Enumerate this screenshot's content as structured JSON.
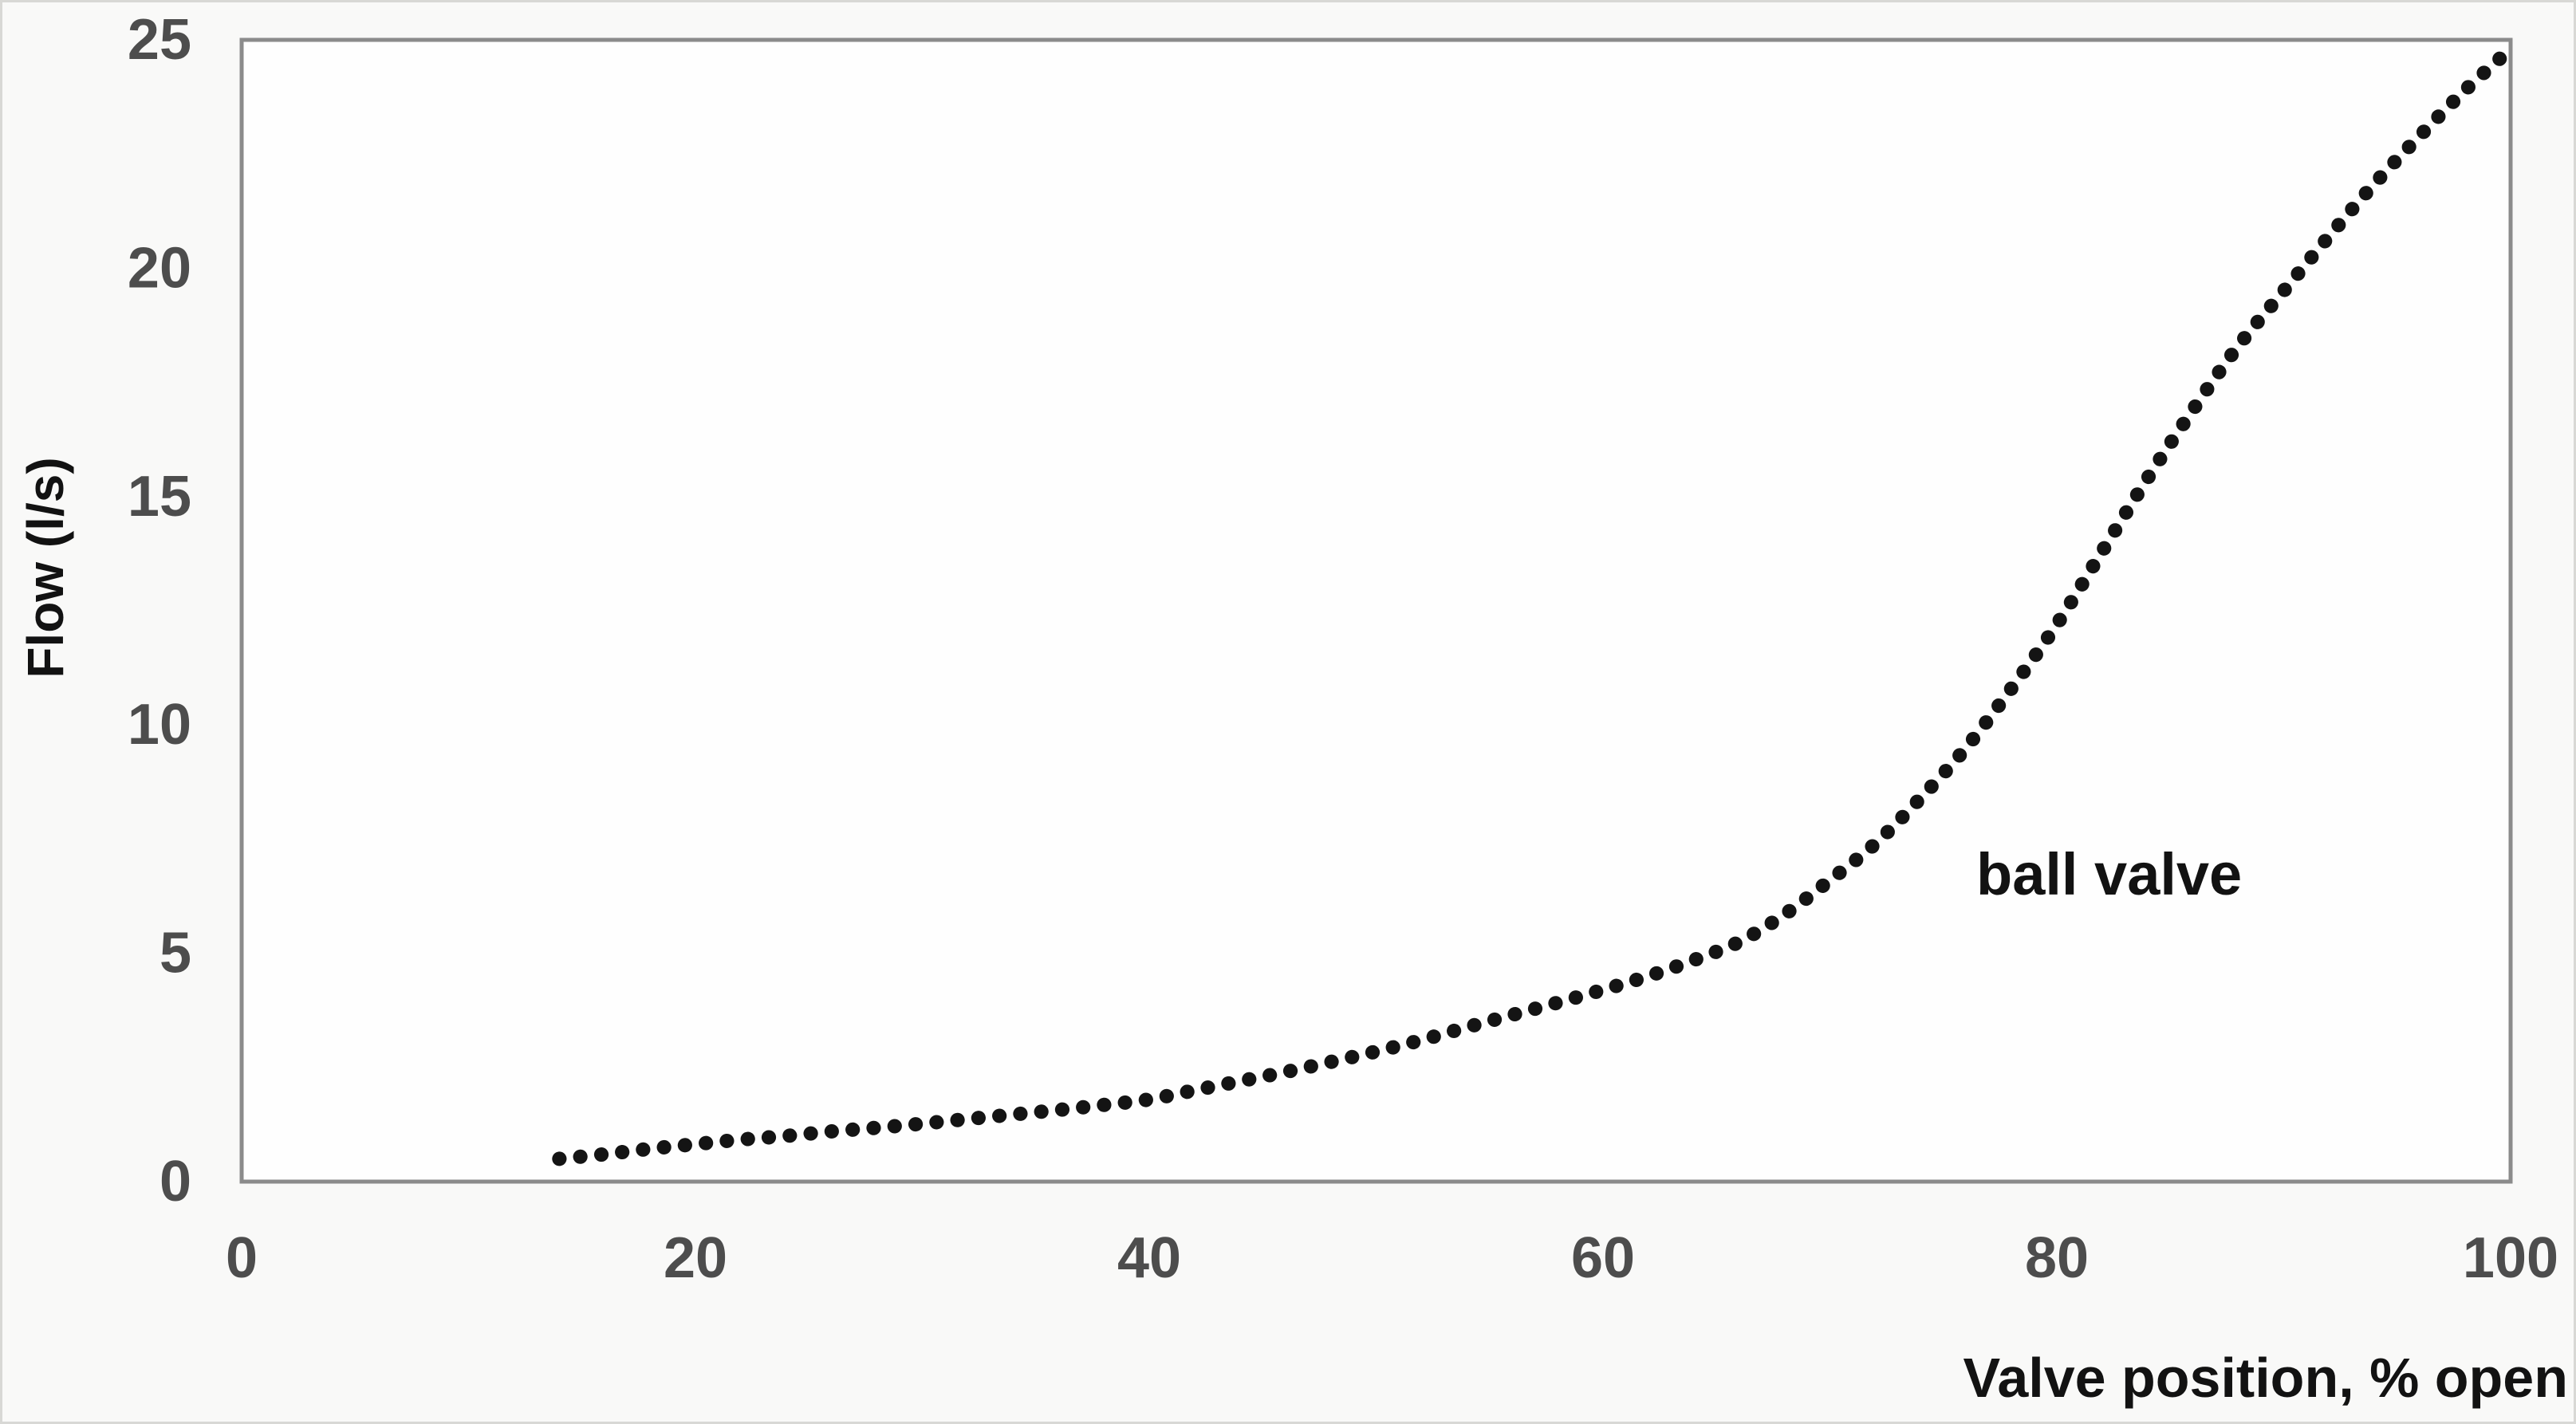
{
  "chart_data": {
    "type": "line",
    "line_style": "dotted",
    "title": "",
    "xlabel": "Valve position, % open",
    "ylabel": "Flow (l/s)",
    "annotation": "ball valve",
    "xlim": [
      0,
      100
    ],
    "ylim": [
      0,
      25
    ],
    "x_ticks": [
      0,
      20,
      40,
      60,
      80,
      100
    ],
    "y_ticks": [
      0,
      5,
      10,
      15,
      20,
      25
    ],
    "grid": false,
    "legend_position": "none",
    "series": [
      {
        "name": "ball valve",
        "color": "#141414",
        "points": [
          [
            14,
            0.5
          ],
          [
            16,
            0.6
          ],
          [
            18,
            0.72
          ],
          [
            20,
            0.82
          ],
          [
            22,
            0.92
          ],
          [
            24,
            1.0
          ],
          [
            26,
            1.1
          ],
          [
            28,
            1.18
          ],
          [
            30,
            1.27
          ],
          [
            32,
            1.37
          ],
          [
            34,
            1.47
          ],
          [
            36,
            1.57
          ],
          [
            38,
            1.68
          ],
          [
            40,
            1.8
          ],
          [
            42,
            2.0
          ],
          [
            44,
            2.2
          ],
          [
            46,
            2.4
          ],
          [
            48,
            2.62
          ],
          [
            50,
            2.85
          ],
          [
            52,
            3.1
          ],
          [
            54,
            3.38
          ],
          [
            56,
            3.65
          ],
          [
            58,
            3.92
          ],
          [
            60,
            4.2
          ],
          [
            62,
            4.5
          ],
          [
            64,
            4.85
          ],
          [
            66,
            5.25
          ],
          [
            68,
            5.85
          ],
          [
            70,
            6.6
          ],
          [
            72,
            7.4
          ],
          [
            74,
            8.4
          ],
          [
            76,
            9.5
          ],
          [
            78,
            10.8
          ],
          [
            80,
            12.2
          ],
          [
            82,
            13.8
          ],
          [
            84,
            15.4
          ],
          [
            86,
            16.9
          ],
          [
            88,
            18.3
          ],
          [
            90,
            19.5
          ],
          [
            92,
            20.7
          ],
          [
            94,
            21.85
          ],
          [
            96,
            22.9
          ],
          [
            98,
            23.9
          ],
          [
            100,
            24.8
          ]
        ]
      }
    ]
  },
  "colors": {
    "series": "#141414",
    "plot_border": "#8b8b8b",
    "tick_text": "#4d4d4d",
    "title_text": "#121212",
    "background": "#f9f9f8"
  }
}
